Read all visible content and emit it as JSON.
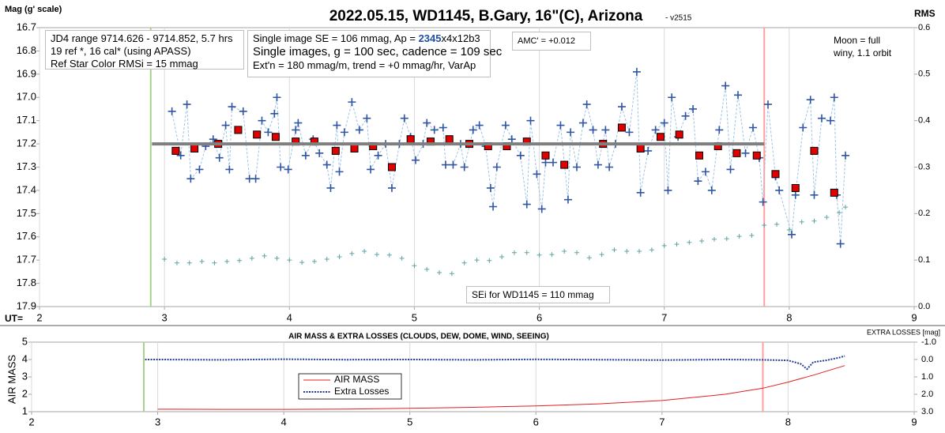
{
  "chart_data": [
    {
      "type": "scatter",
      "title": "2022.05.15, WD1145, B.Gary, 16\"(C), Arizona",
      "subtitle": "- v2515",
      "ylabel": "Mag (g' scale)",
      "y2label": "RMS",
      "xlabel": "UT=",
      "xlim": [
        2,
        9
      ],
      "xticks": [
        2,
        3,
        4,
        5,
        6,
        7,
        8,
        9
      ],
      "xgrid": true,
      "ylim": [
        16.7,
        17.9
      ],
      "invert_y": true,
      "yticks": [
        16.7,
        16.8,
        16.9,
        {
          "value": 17,
          "label": "17.0"
        },
        17.1,
        17.2,
        17.3,
        17.4,
        17.5,
        17.6,
        17.7,
        17.8,
        17.9
      ],
      "y2lim": [
        0,
        0.6
      ],
      "y2ticks": [
        {
          "value": 0,
          "label": "0.0"
        },
        0.1,
        0.2,
        0.3,
        0.4,
        0.5,
        0.6
      ],
      "vlines": [
        {
          "x": 2.89,
          "color": "#a9d18e"
        },
        {
          "x": 7.8,
          "color": "#ff9f9f"
        }
      ],
      "series": [
        {
          "color": "#2f55a4",
          "marker": "plus",
          "line": "dashed",
          "line_color": "#9dc3e6",
          "x": [
            3.06,
            3.13,
            3.18,
            3.21,
            3.28,
            3.33,
            3.39,
            3.44,
            3.49,
            3.52,
            3.54,
            3.63,
            3.68,
            3.73,
            3.78,
            3.83,
            3.88,
            3.9,
            3.93,
            3.99,
            4.05,
            4.07,
            4.13,
            4.19,
            4.24,
            4.3,
            4.33,
            4.38,
            4.4,
            4.44,
            4.5,
            4.56,
            4.62,
            4.65,
            4.71,
            4.77,
            4.82,
            4.88,
            4.92,
            4.97,
            5.01,
            5.07,
            5.1,
            5.16,
            5.23,
            5.25,
            5.31,
            5.37,
            5.4,
            5.47,
            5.52,
            5.57,
            5.61,
            5.63,
            5.66,
            5.73,
            5.78,
            5.85,
            5.9,
            5.93,
            5.98,
            6.02,
            6.05,
            6.11,
            6.17,
            6.23,
            6.25,
            6.3,
            6.35,
            6.38,
            6.43,
            6.47,
            6.53,
            6.56,
            6.61,
            6.66,
            6.72,
            6.78,
            6.81,
            6.87,
            6.93,
            7.0,
            7.03,
            7.06,
            7.11,
            7.17,
            7.23,
            7.27,
            7.33,
            7.38,
            7.44,
            7.49,
            7.53,
            7.59,
            7.65,
            7.71,
            7.76,
            7.79,
            7.83,
            7.89,
            7.92,
            8.02,
            8.05,
            8.11,
            8.17,
            8.2,
            8.26,
            8.33,
            8.36,
            8.38,
            8.41,
            8.45
          ],
          "values": [
            17.06,
            17.25,
            17.03,
            17.35,
            17.31,
            17.21,
            17.18,
            17.26,
            17.12,
            17.31,
            17.04,
            17.06,
            17.35,
            17.35,
            17.1,
            17.15,
            17.07,
            17.0,
            17.3,
            17.31,
            17.14,
            17.11,
            17.25,
            17.18,
            17.24,
            17.29,
            17.39,
            17.12,
            17.32,
            17.15,
            17.02,
            17.14,
            17.09,
            17.31,
            17.25,
            17.2,
            17.39,
            17.2,
            17.09,
            17.17,
            17.27,
            17.2,
            17.11,
            17.14,
            17.13,
            17.29,
            17.29,
            17.2,
            17.3,
            17.14,
            17.12,
            17.21,
            17.39,
            17.47,
            17.3,
            17.12,
            17.18,
            17.25,
            17.46,
            17.1,
            17.33,
            17.48,
            17.28,
            17.28,
            17.12,
            17.44,
            17.15,
            17.3,
            17.11,
            17.03,
            17.14,
            17.29,
            17.14,
            17.3,
            17.2,
            17.04,
            17.15,
            16.89,
            17.41,
            17.23,
            17.14,
            17.11,
            17.4,
            17.0,
            17.17,
            17.08,
            17.05,
            17.36,
            17.32,
            17.4,
            17.14,
            16.95,
            17.31,
            16.99,
            17.24,
            17.13,
            17.26,
            17.45,
            17.03,
            17.34,
            17.4,
            17.59,
            17.42,
            17.13,
            17.01,
            17.42,
            17.09,
            17.1,
            17.0,
            17.42,
            17.63,
            17.25
          ]
        },
        {
          "color": "#e00000",
          "marker": "square",
          "x": [
            3.09,
            3.24,
            3.43,
            3.59,
            3.74,
            3.89,
            4.05,
            4.2,
            4.37,
            4.52,
            4.67,
            4.82,
            4.97,
            5.13,
            5.28,
            5.44,
            5.59,
            5.74,
            5.9,
            6.05,
            6.2,
            6.51,
            6.66,
            6.81,
            6.97,
            7.12,
            7.28,
            7.43,
            7.58,
            7.74,
            7.89,
            8.05,
            8.2,
            8.36
          ],
          "values": [
            17.23,
            17.22,
            17.2,
            17.14,
            17.16,
            17.17,
            17.19,
            17.19,
            17.23,
            17.22,
            17.21,
            17.3,
            17.18,
            17.19,
            17.18,
            17.2,
            17.21,
            17.21,
            17.19,
            17.25,
            17.29,
            17.2,
            17.13,
            17.22,
            17.17,
            17.16,
            17.25,
            17.21,
            17.24,
            17.25,
            17.33,
            17.39,
            17.23,
            17.41
          ]
        },
        {
          "color": "#5fa3a3",
          "marker": "plus",
          "marker_size": 3,
          "axis": "y2",
          "x": [
            3.0,
            3.1,
            3.2,
            3.3,
            3.4,
            3.5,
            3.6,
            3.7,
            3.8,
            3.9,
            4.0,
            4.1,
            4.2,
            4.3,
            4.4,
            4.5,
            4.6,
            4.7,
            4.8,
            4.9,
            5.0,
            5.1,
            5.2,
            5.3,
            5.4,
            5.5,
            5.6,
            5.7,
            5.8,
            5.9,
            6.0,
            6.1,
            6.2,
            6.3,
            6.4,
            6.5,
            6.6,
            6.7,
            6.8,
            6.9,
            7.0,
            7.1,
            7.2,
            7.3,
            7.4,
            7.5,
            7.6,
            7.7,
            7.8,
            7.9,
            8.0,
            8.1,
            8.2,
            8.3,
            8.4,
            8.45
          ],
          "values": [
            0.102,
            0.094,
            0.094,
            0.097,
            0.094,
            0.097,
            0.099,
            0.104,
            0.109,
            0.104,
            0.1,
            0.095,
            0.097,
            0.102,
            0.107,
            0.114,
            0.119,
            0.112,
            0.111,
            0.104,
            0.088,
            0.08,
            0.073,
            0.071,
            0.094,
            0.1,
            0.099,
            0.107,
            0.116,
            0.116,
            0.111,
            0.112,
            0.119,
            0.116,
            0.105,
            0.112,
            0.122,
            0.119,
            0.119,
            0.122,
            0.131,
            0.134,
            0.138,
            0.141,
            0.145,
            0.146,
            0.151,
            0.153,
            0.175,
            0.177,
            0.165,
            0.182,
            0.184,
            0.192,
            0.202,
            0.214
          ]
        },
        {
          "color": "#7f7f7f",
          "line": "solid",
          "line_width": 4,
          "x": [
            2.9,
            7.8
          ],
          "values": [
            17.2,
            17.2
          ]
        }
      ],
      "annotations": [
        [
          "JD4 range 9714.626 - 9714.852, 5.7 hrs",
          "19 ref *, 16 cal* (using APASS)",
          "Ref Star Color RMSi = 15 mmag"
        ],
        [
          [
            "Single image SE = 106 mmag, Ap = ",
            "2345",
            "x4x12b3"
          ],
          "Single images, g = 100 sec, cadence = 109 sec",
          "Ext'n = 180 mmag/m, trend = +0 mmag/hr, VarAp"
        ],
        [
          "AMC' = +0.012"
        ],
        [
          "Moon = full",
          "winy,  1.1 orbit"
        ],
        [
          "SEi for WD1145 = 110 mmag"
        ]
      ]
    },
    {
      "type": "line",
      "title": "AIR MASS & EXTRA LOSSES (CLOUDS, DEW, DOME, WIND, SEEING)",
      "ylabel": "AIR MASS",
      "y2label": "EXTRA LOSSES [mag]",
      "xlim": [
        2,
        9
      ],
      "xticks": [
        2,
        3,
        4,
        5,
        6,
        7,
        8,
        9
      ],
      "xgrid": true,
      "ylim": [
        1,
        5
      ],
      "yticks": [
        1,
        2,
        3,
        4,
        5
      ],
      "y2lim": [
        -1,
        3
      ],
      "invert_y2": true,
      "y2ticks": [
        {
          "value": -1,
          "label": "-1.0"
        },
        {
          "value": 0,
          "label": "0.0"
        },
        {
          "value": 1,
          "label": "1.0"
        },
        {
          "value": 2,
          "label": "2.0"
        },
        {
          "value": 3,
          "label": "3.0"
        }
      ],
      "vlines": [
        {
          "x": 2.89,
          "color": "#a9d18e"
        },
        {
          "x": 7.8,
          "color": "#ff9f9f"
        }
      ],
      "legend": true,
      "series": [
        {
          "name": "AIR MASS",
          "color": "#e02020",
          "line": "solid",
          "x": [
            3.0,
            3.5,
            4.0,
            4.5,
            5.0,
            5.5,
            6.0,
            6.5,
            7.0,
            7.5,
            7.8,
            8.0,
            8.2,
            8.45
          ],
          "values": [
            1.14,
            1.13,
            1.13,
            1.15,
            1.19,
            1.25,
            1.33,
            1.45,
            1.64,
            2.0,
            2.35,
            2.7,
            3.1,
            3.65
          ]
        },
        {
          "name": "Extra Losses",
          "color": "#1f3c99",
          "line": "dotted",
          "axis": "y2",
          "x": [
            2.9,
            3.0,
            3.5,
            4.0,
            4.5,
            5.0,
            5.5,
            6.0,
            6.5,
            7.0,
            7.5,
            7.8,
            8.0,
            8.1,
            8.15,
            8.2,
            8.3,
            8.4,
            8.45
          ],
          "values": [
            0,
            0,
            0.02,
            -0.02,
            0.01,
            0,
            0.02,
            -0.01,
            0.01,
            0.03,
            0,
            0.02,
            0.05,
            0.25,
            0.55,
            0.15,
            0.05,
            -0.1,
            -0.2
          ]
        }
      ]
    }
  ]
}
